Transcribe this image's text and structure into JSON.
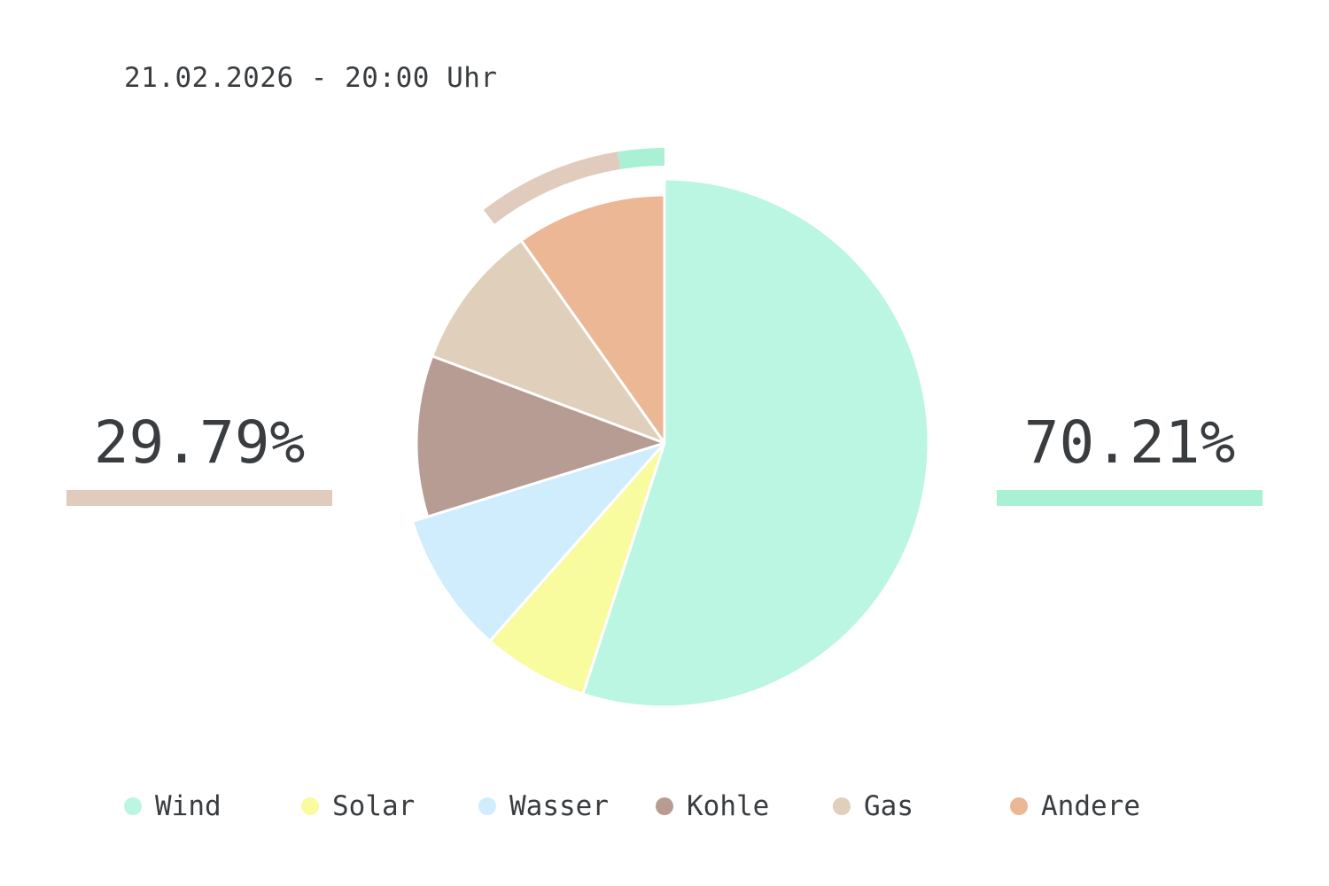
{
  "header": {
    "timestamp": "21.02.2026 - 20:00 Uhr"
  },
  "summary": {
    "fossil": {
      "value": "29.79%",
      "fraction": 0.2979,
      "color": "#e0cbbd"
    },
    "renewable": {
      "value": "70.21%",
      "fraction": 0.7021,
      "color": "#aaf0d5"
    }
  },
  "chart_data": {
    "type": "pie",
    "title": "",
    "legend_position": "bottom",
    "slices": [
      {
        "label": "Wind",
        "value": 55.0,
        "color": "#baf6e1",
        "group": "renewable"
      },
      {
        "label": "Solar",
        "value": 6.5,
        "color": "#f8fb9e",
        "group": "renewable"
      },
      {
        "label": "Wasser",
        "value": 8.7,
        "color": "#cfedfd",
        "group": "renewable"
      },
      {
        "label": "Kohle",
        "value": 10.5,
        "color": "#b69c93",
        "group": "fossil"
      },
      {
        "label": "Gas",
        "value": 9.5,
        "color": "#dfcfbb",
        "group": "fossil"
      },
      {
        "label": "Andere",
        "value": 9.8,
        "color": "#ebb794",
        "group": "fossil"
      }
    ]
  }
}
